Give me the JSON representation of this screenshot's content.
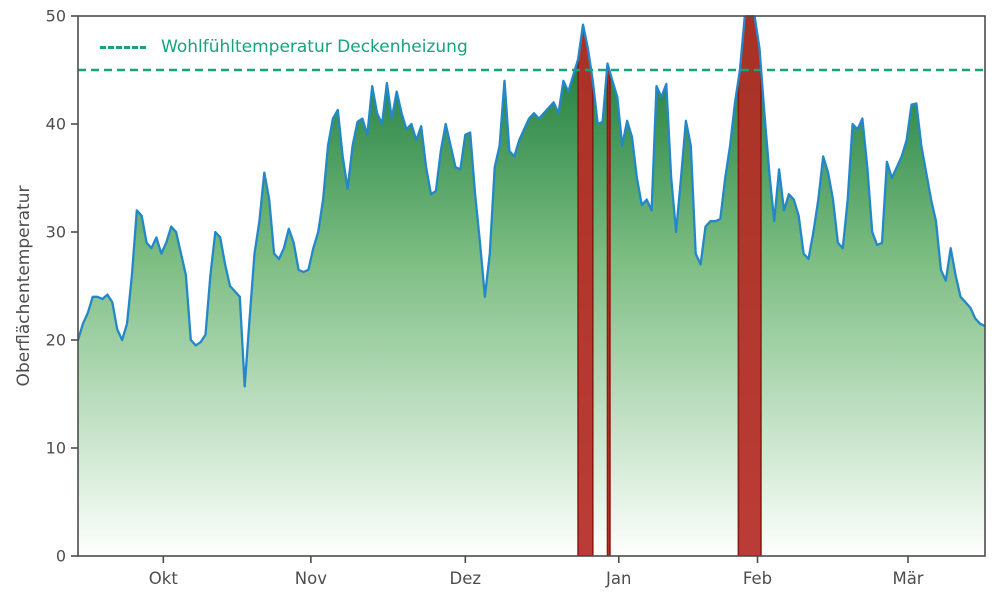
{
  "chart_data": {
    "type": "area",
    "title": "",
    "xlabel": "",
    "ylabel": "Oberflächentemperatur",
    "ylim": [
      0,
      50
    ],
    "yticks": [
      0,
      10,
      20,
      30,
      40,
      50
    ],
    "x_unit": "day_index",
    "x_range": [
      0,
      185
    ],
    "grid": false,
    "legend_position": "upper-left",
    "month_ticks": [
      {
        "day": 17.4,
        "label": "Okt"
      },
      {
        "day": 47.5,
        "label": "Nov"
      },
      {
        "day": 79.0,
        "label": "Dez"
      },
      {
        "day": 110.3,
        "label": "Jan"
      },
      {
        "day": 138.6,
        "label": "Feb"
      },
      {
        "day": 169.3,
        "label": "Mär"
      }
    ],
    "comfort_line": {
      "value": 45,
      "label": "Wohlfühltemperatur Deckenheizung"
    },
    "series": [
      {
        "name": "Oberflächentemperatur",
        "values": [
          20,
          21.5,
          22.5,
          24,
          24,
          23.8,
          24.2,
          23.5,
          21,
          20,
          21.5,
          26,
          32,
          31.5,
          29,
          28.5,
          29.5,
          28,
          29,
          30.5,
          30,
          28,
          26,
          20,
          19.5,
          19.8,
          20.5,
          26,
          30,
          29.5,
          27,
          25,
          24.5,
          24,
          15.7,
          22,
          28,
          31,
          35.5,
          33,
          28,
          27.5,
          28.5,
          30.3,
          29,
          26.5,
          26.3,
          26.5,
          28.5,
          30,
          33,
          38,
          40.5,
          41.3,
          37,
          34,
          38,
          40.2,
          40.5,
          39,
          43.5,
          41,
          40,
          43.8,
          40.5,
          43,
          41,
          39.5,
          40,
          38.5,
          39.8,
          36,
          33.5,
          33.8,
          37.5,
          40,
          38,
          36,
          35.8,
          39,
          39.2,
          33.5,
          29,
          24,
          28,
          36,
          38,
          44,
          37.5,
          37,
          38.5,
          39.5,
          40.5,
          41,
          40.5,
          41,
          41.5,
          42,
          41,
          44,
          43,
          44.5,
          46,
          49.2,
          47,
          44,
          40,
          40.2,
          45.6,
          44,
          42.5,
          38,
          40.3,
          38.8,
          35,
          32.5,
          33,
          32,
          43.5,
          42.5,
          43.7,
          35,
          30,
          35,
          40.3,
          38,
          28,
          27,
          30.5,
          31,
          31,
          31.2,
          35,
          38,
          42,
          45,
          50,
          50.5,
          50,
          47,
          41,
          35.5,
          31,
          35.8,
          32,
          33.5,
          33,
          31.5,
          28,
          27.5,
          30,
          33,
          37,
          35.5,
          33,
          29,
          28.5,
          33,
          40,
          39.5,
          40.5,
          36,
          30,
          28.8,
          29,
          36.5,
          35,
          36,
          37,
          38.5,
          41.8,
          41.9,
          38,
          35.5,
          33,
          31,
          26.5,
          25.5,
          28.5,
          26,
          24,
          23.5,
          23,
          22,
          21.5,
          21.3
        ]
      }
    ],
    "exceedance_bands": [
      {
        "from_day": 102.0,
        "to_day": 105.0
      },
      {
        "from_day": 108.0,
        "to_day": 108.5
      },
      {
        "from_day": 134.7,
        "to_day": 139.3
      }
    ],
    "colors": {
      "line": "#2387c8",
      "area_top": "#0d7231",
      "area_mid": "#7cbd82",
      "area_bottom": "#fefffe",
      "comfort": "#15a47c",
      "band_fill": "#b52b25",
      "band_edge": "#8c1a12",
      "axis": "#4d4d4d"
    }
  }
}
